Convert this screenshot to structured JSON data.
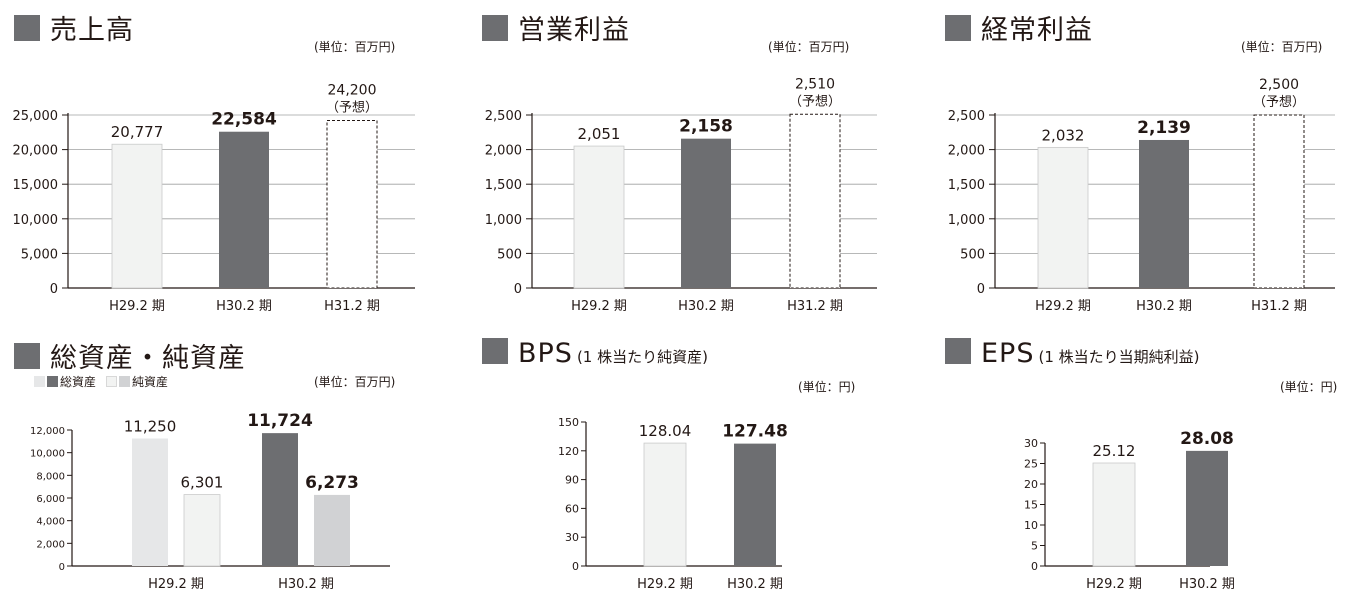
{
  "colors": {
    "prev": "#f2f3f2",
    "curr": "#6d6e71",
    "forecast": "#ffffff",
    "pale_gray": "#e6e7e8",
    "mid_gray": "#d1d2d4",
    "square": "#6d6e71"
  },
  "panels": [
    {
      "title": "売上高",
      "subtitle": "",
      "unit": "(単位：百万円)",
      "chart_data": {
        "type": "bar",
        "categories": [
          "H29.2 期",
          "H30.2 期",
          "H31.2 期"
        ],
        "values": [
          20777,
          22584,
          24200
        ],
        "value_labels": [
          "20,777",
          "22,584",
          "24,200"
        ],
        "value_notes": [
          "",
          "",
          "（予想）"
        ],
        "bar_styles": [
          "prev",
          "curr",
          "forecast"
        ],
        "bold": [
          false,
          true,
          false
        ],
        "yticks": [
          "0",
          "5,000",
          "10,000",
          "15,000",
          "20,000",
          "25,000"
        ],
        "ylim": [
          0,
          25000
        ],
        "grid": true
      }
    },
    {
      "title": "営業利益",
      "subtitle": "",
      "unit": "(単位：百万円)",
      "chart_data": {
        "type": "bar",
        "categories": [
          "H29.2 期",
          "H30.2 期",
          "H31.2 期"
        ],
        "values": [
          2051,
          2158,
          2510
        ],
        "value_labels": [
          "2,051",
          "2,158",
          "2,510"
        ],
        "value_notes": [
          "",
          "",
          "（予想）"
        ],
        "bar_styles": [
          "prev",
          "curr",
          "forecast"
        ],
        "bold": [
          false,
          true,
          false
        ],
        "yticks": [
          "0",
          "500",
          "1,000",
          "1,500",
          "2,000",
          "2,500"
        ],
        "ylim": [
          0,
          2500
        ],
        "grid": true
      }
    },
    {
      "title": "経常利益",
      "subtitle": "",
      "unit": "(単位：百万円)",
      "chart_data": {
        "type": "bar",
        "categories": [
          "H29.2 期",
          "H30.2 期",
          "H31.2 期"
        ],
        "values": [
          2032,
          2139,
          2500
        ],
        "value_labels": [
          "2,032",
          "2,139",
          "2,500"
        ],
        "value_notes": [
          "",
          "",
          "（予想）"
        ],
        "bar_styles": [
          "prev",
          "curr",
          "forecast"
        ],
        "bold": [
          false,
          true,
          false
        ],
        "yticks": [
          "0",
          "500",
          "1,000",
          "1,500",
          "2,000",
          "2,500"
        ],
        "ylim": [
          0,
          2500
        ],
        "grid": true
      }
    },
    {
      "title": "総資産・純資産",
      "subtitle": "",
      "unit": "(単位：百万円)",
      "legend": {
        "total_assets": "総資産",
        "net_assets": "純資産"
      },
      "chart_data": {
        "type": "bar",
        "categories": [
          "H29.2 期",
          "H30.2 期"
        ],
        "series": [
          {
            "name": "総資産",
            "values": [
              11250,
              11724
            ],
            "labels": [
              "11,250",
              "11,724"
            ],
            "styles": [
              "pale_gray",
              "curr"
            ],
            "bold": [
              false,
              true
            ]
          },
          {
            "name": "純資産",
            "values": [
              6301,
              6273
            ],
            "labels": [
              "6,301",
              "6,273"
            ],
            "styles": [
              "prev",
              "mid_gray"
            ],
            "bold": [
              false,
              true
            ]
          }
        ],
        "yticks": [
          "0",
          "2,000",
          "4,000",
          "6,000",
          "8,000",
          "10,000",
          "12,000"
        ],
        "ylim": [
          0,
          12000
        ],
        "grid": false
      }
    },
    {
      "title": "BPS",
      "subtitle": "(1 株当たり純資産)",
      "unit": "(単位：円)",
      "chart_data": {
        "type": "bar",
        "categories": [
          "H29.2 期",
          "H30.2 期"
        ],
        "values": [
          128.04,
          127.48
        ],
        "value_labels": [
          "128.04",
          "127.48"
        ],
        "bar_styles": [
          "prev",
          "curr"
        ],
        "bold": [
          false,
          true
        ],
        "yticks": [
          "0",
          "30",
          "60",
          "90",
          "120",
          "150"
        ],
        "ylim": [
          0,
          150
        ],
        "grid": false
      }
    },
    {
      "title": "EPS",
      "subtitle": "(1 株当たり当期純利益)",
      "unit": "(単位：円)",
      "chart_data": {
        "type": "bar",
        "categories": [
          "H29.2 期",
          "H30.2 期"
        ],
        "values": [
          25.12,
          28.08
        ],
        "value_labels": [
          "25.12",
          "28.08"
        ],
        "bar_styles": [
          "prev",
          "curr"
        ],
        "bold": [
          false,
          true
        ],
        "yticks": [
          "0",
          "5",
          "10",
          "15",
          "20",
          "25",
          "30"
        ],
        "ylim": [
          0,
          30
        ],
        "grid": false
      }
    }
  ]
}
